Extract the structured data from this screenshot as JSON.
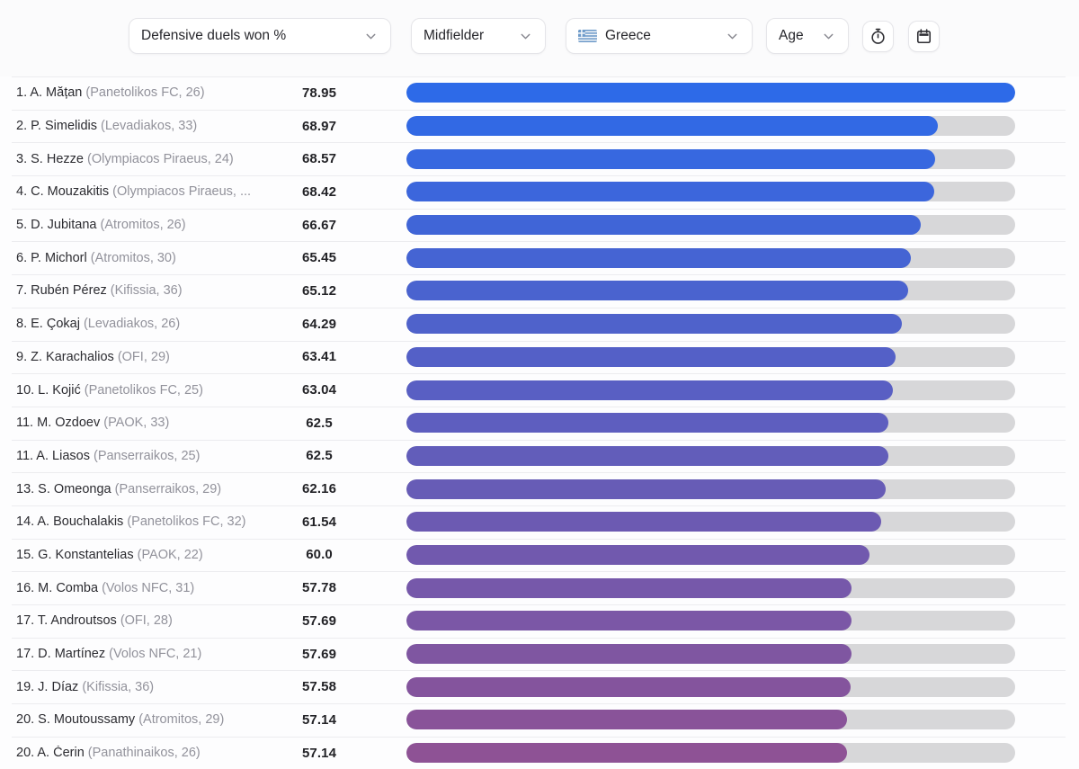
{
  "filters": {
    "metric_label": "Defensive duels won %",
    "position_label": "Midfielder",
    "country_label": "Greece",
    "age_label": "Age"
  },
  "colors": {
    "bar_track": "#d7d7d9",
    "bar_gradient_start": "#2d6ae8",
    "bar_gradient_end": "#8e5295",
    "flag_blue": "#6d9ac9",
    "flag_white": "#f4f7fa",
    "icon_dark": "#2e2e33",
    "chevron_gray": "#87878f"
  },
  "rows": [
    {
      "rank_name": "1. A. Mățan",
      "club": "(Panetolikos FC, 26)",
      "value": "78.95"
    },
    {
      "rank_name": "2. P. Simelidis",
      "club": "(Levadiakos, 33)",
      "value": "68.97"
    },
    {
      "rank_name": "3. S. Hezze",
      "club": "(Olympiacos Piraeus, 24)",
      "value": "68.57"
    },
    {
      "rank_name": "4. C. Mouzakitis",
      "club": "(Olympiacos Piraeus, ...",
      "value": "68.42"
    },
    {
      "rank_name": "5. D. Jubitana",
      "club": "(Atromitos, 26)",
      "value": "66.67"
    },
    {
      "rank_name": "6. P. Michorl",
      "club": "(Atromitos, 30)",
      "value": "65.45"
    },
    {
      "rank_name": "7. Rubén Pérez",
      "club": "(Kifissia, 36)",
      "value": "65.12"
    },
    {
      "rank_name": "8. E. Çokaj",
      "club": "(Levadiakos, 26)",
      "value": "64.29"
    },
    {
      "rank_name": "9. Z. Karachalios",
      "club": "(OFI, 29)",
      "value": "63.41"
    },
    {
      "rank_name": "10. L. Kojić",
      "club": "(Panetolikos FC, 25)",
      "value": "63.04"
    },
    {
      "rank_name": "11. M. Ozdoev",
      "club": "(PAOK, 33)",
      "value": "62.5"
    },
    {
      "rank_name": "11. A. Liasos",
      "club": "(Panserraikos, 25)",
      "value": "62.5"
    },
    {
      "rank_name": "13. S. Omeonga",
      "club": "(Panserraikos, 29)",
      "value": "62.16"
    },
    {
      "rank_name": "14. A. Bouchalakis",
      "club": "(Panetolikos FC, 32)",
      "value": "61.54"
    },
    {
      "rank_name": "15. G. Konstantelias",
      "club": "(PAOK, 22)",
      "value": "60.0"
    },
    {
      "rank_name": "16. M. Comba",
      "club": "(Volos NFC, 31)",
      "value": "57.78"
    },
    {
      "rank_name": "17. T. Androutsos",
      "club": "(OFI, 28)",
      "value": "57.69"
    },
    {
      "rank_name": "17. D. Martínez",
      "club": "(Volos NFC, 21)",
      "value": "57.69"
    },
    {
      "rank_name": "19. J. Díaz",
      "club": "(Kifissia, 36)",
      "value": "57.58"
    },
    {
      "rank_name": "20. S. Moutoussamy",
      "club": "(Atromitos, 29)",
      "value": "57.14"
    },
    {
      "rank_name": "20. A. Čerin",
      "club": "(Panathinaikos, 26)",
      "value": "57.14"
    }
  ],
  "chart_data": {
    "type": "bar",
    "orientation": "horizontal",
    "title": "Defensive duels won %",
    "legend": "none",
    "xlim": [
      0,
      78.95
    ],
    "categories": [
      "A. Mățan (Panetolikos FC, 26)",
      "P. Simelidis (Levadiakos, 33)",
      "S. Hezze (Olympiacos Piraeus, 24)",
      "C. Mouzakitis (Olympiacos Piraeus, ...)",
      "D. Jubitana (Atromitos, 26)",
      "P. Michorl (Atromitos, 30)",
      "Rubén Pérez (Kifissia, 36)",
      "E. Çokaj (Levadiakos, 26)",
      "Z. Karachalios (OFI, 29)",
      "L. Kojić (Panetolikos FC, 25)",
      "M. Ozdoev (PAOK, 33)",
      "A. Liasos (Panserraikos, 25)",
      "S. Omeonga (Panserraikos, 29)",
      "A. Bouchalakis (Panetolikos FC, 32)",
      "G. Konstantelias (PAOK, 22)",
      "M. Comba (Volos NFC, 31)",
      "T. Androutsos (OFI, 28)",
      "D. Martínez (Volos NFC, 21)",
      "J. Díaz (Kifissia, 36)",
      "S. Moutoussamy (Atromitos, 29)",
      "A. Čerin (Panathinaikos, 26)"
    ],
    "values": [
      78.95,
      68.97,
      68.57,
      68.42,
      66.67,
      65.45,
      65.12,
      64.29,
      63.41,
      63.04,
      62.5,
      62.5,
      62.16,
      61.54,
      60.0,
      57.78,
      57.69,
      57.69,
      57.58,
      57.14,
      57.14
    ],
    "bar_color_scale": [
      "#2d6ae8",
      "#8e5295"
    ]
  }
}
